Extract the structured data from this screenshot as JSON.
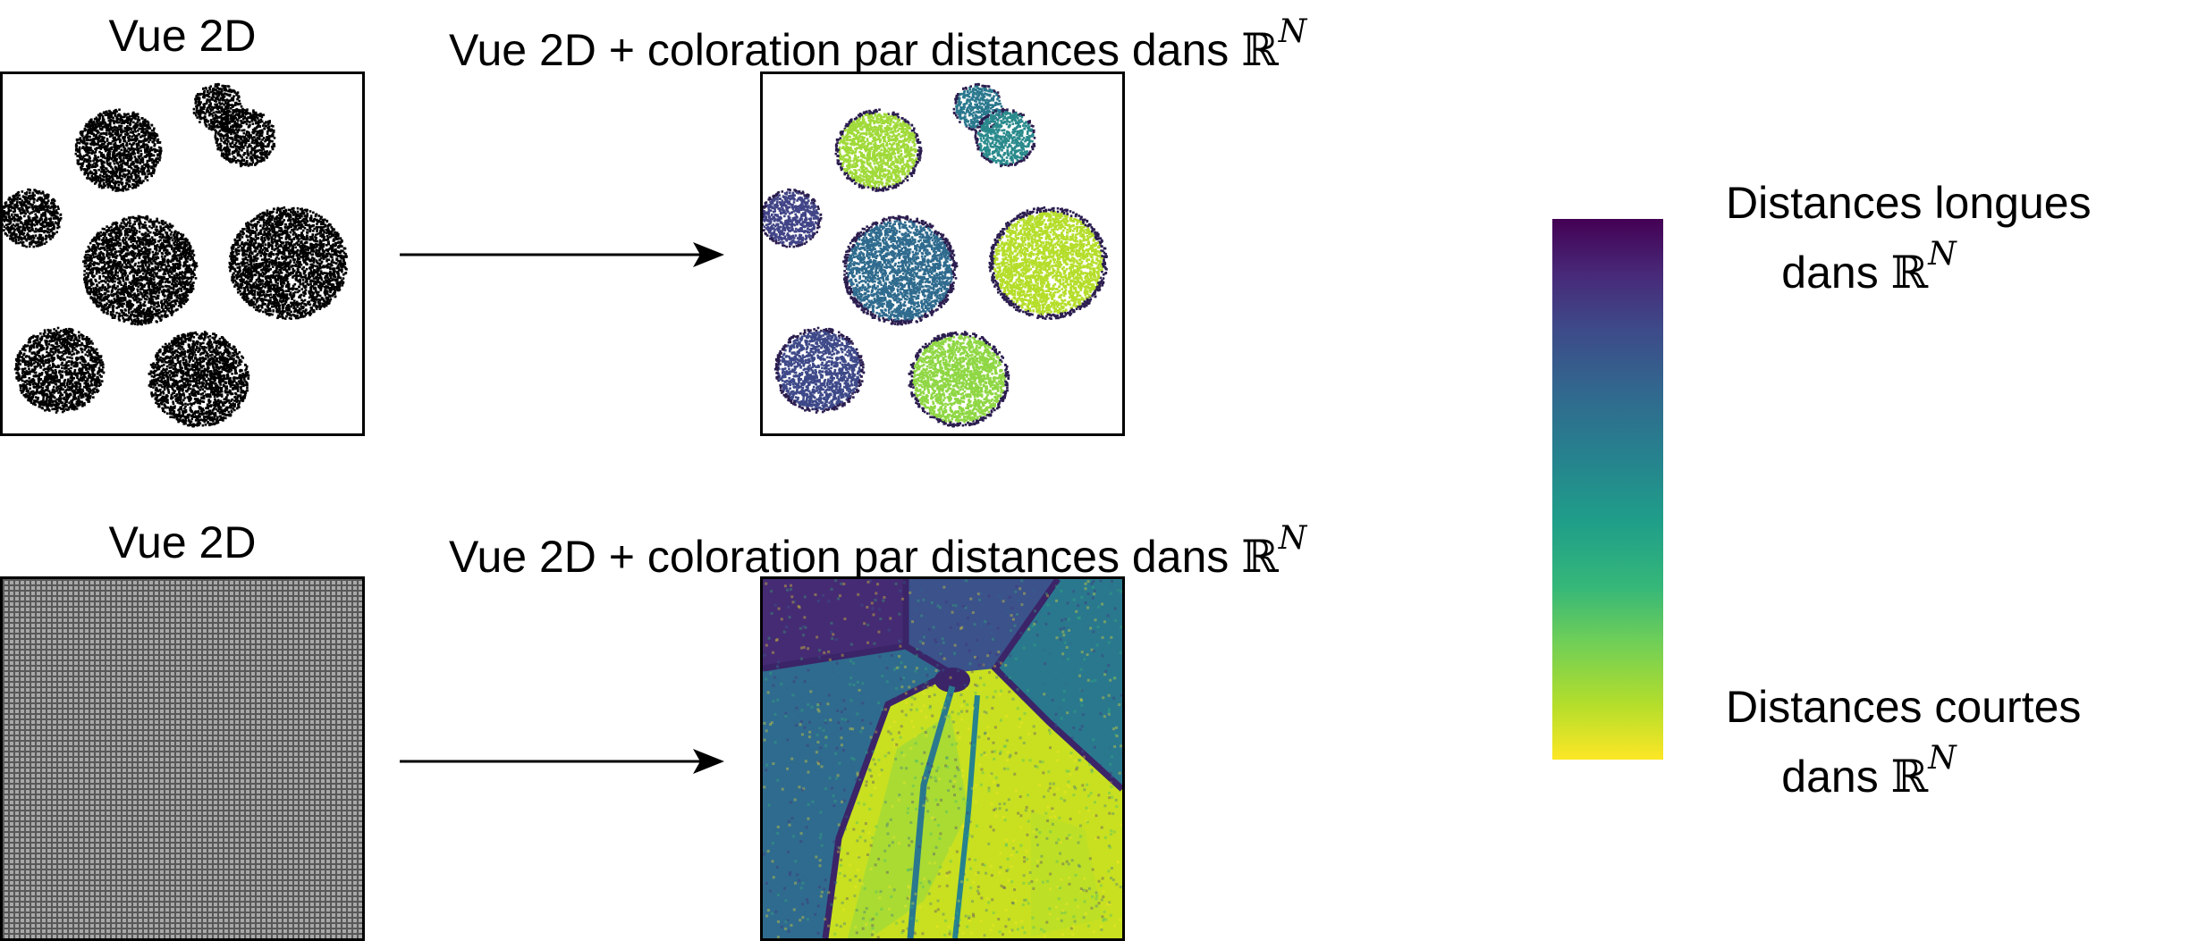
{
  "top_row": {
    "left_title": "Vue 2D",
    "right_title_prefix": "Vue 2D + coloration par distances dans ",
    "right_title_symbol": "ℝ",
    "right_title_superscript": "N"
  },
  "bottom_row": {
    "left_title": "Vue 2D",
    "right_title_prefix": "Vue 2D + coloration par distances dans ",
    "right_title_symbol": "ℝ",
    "right_title_superscript": "N"
  },
  "legend": {
    "long_line1": "Distances longues",
    "long_line2_prefix": "dans ",
    "long_symbol": "ℝ",
    "long_superscript": "N",
    "short_line1": "Distances courtes",
    "short_line2_prefix": "dans ",
    "short_symbol": "ℝ",
    "short_superscript": "N"
  },
  "colors": {
    "colormap": "viridis",
    "viridis_dark": "#440154",
    "viridis_mid": "#21918c",
    "viridis_light": "#fde725",
    "outline": "#000000"
  }
}
